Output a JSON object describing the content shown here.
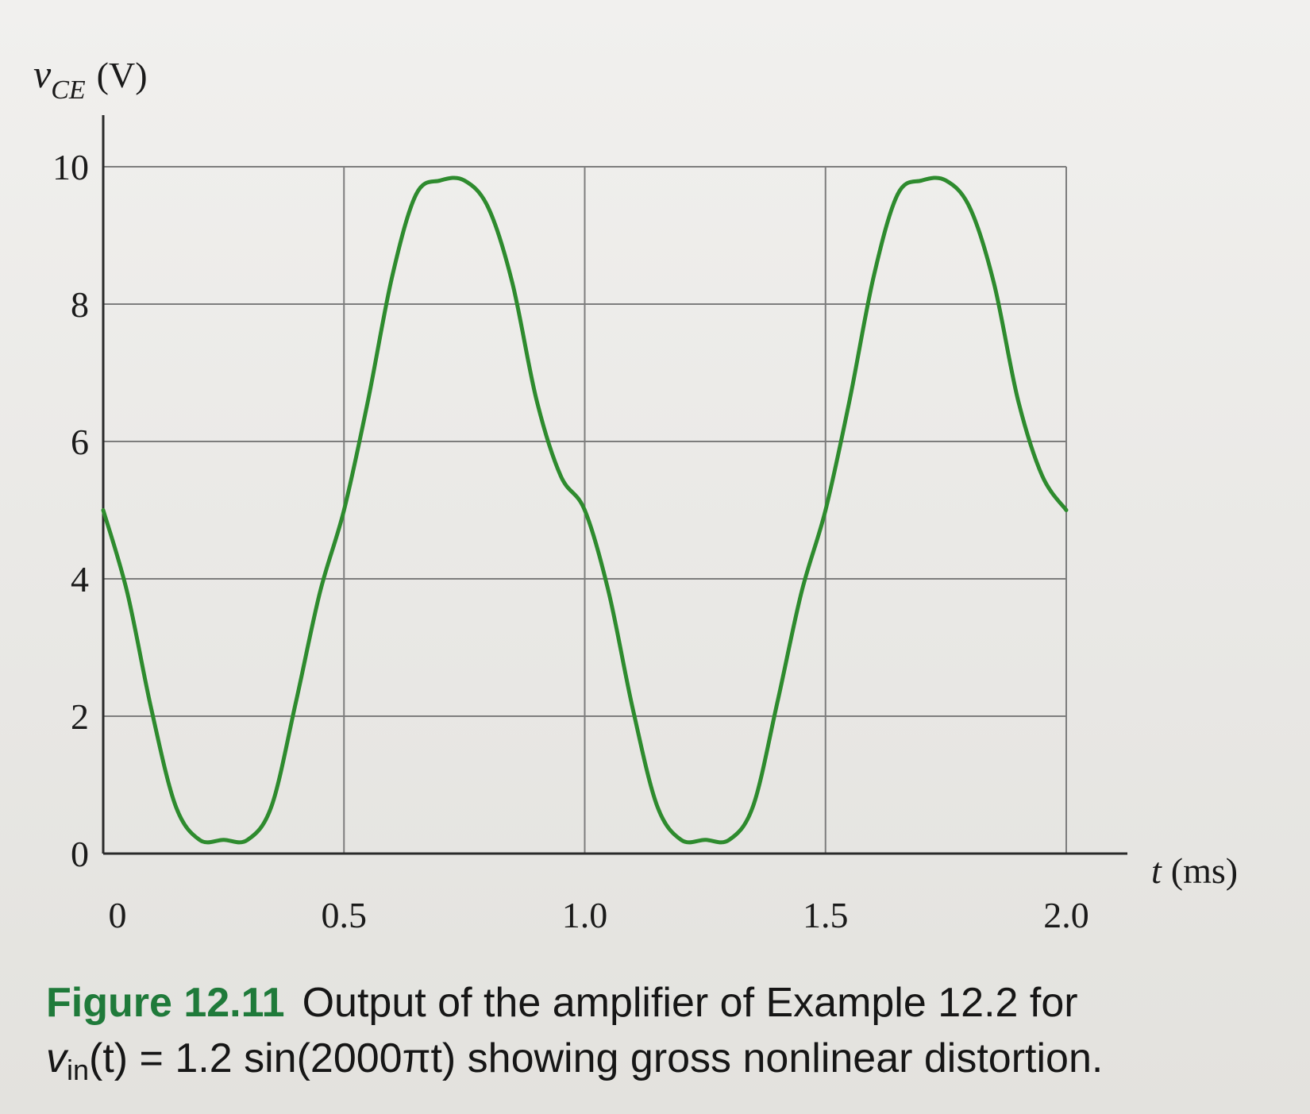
{
  "chart_data": {
    "type": "line",
    "ylabel_var": "v",
    "ylabel_sub": "CE",
    "ylabel_unit": "(V)",
    "xlabel_var": "t",
    "xlabel_unit": "(ms)",
    "xlim": [
      0,
      2.0
    ],
    "ylim": [
      0,
      10
    ],
    "x_ticks": [
      0,
      0.5,
      1.0,
      1.5,
      2.0
    ],
    "x_tick_labels": [
      "0",
      "0.5",
      "1.0",
      "1.5",
      "2.0"
    ],
    "y_ticks": [
      0,
      2,
      4,
      6,
      8,
      10
    ],
    "y_tick_labels": [
      "0",
      "2",
      "4",
      "6",
      "8",
      "10"
    ],
    "grid": true,
    "line_color": "#2e8b2e",
    "series": [
      {
        "x": [
          0,
          0.05,
          0.1,
          0.15,
          0.2,
          0.25,
          0.3,
          0.35,
          0.4,
          0.45,
          0.5,
          0.55,
          0.6,
          0.65,
          0.7,
          0.75,
          0.8,
          0.85,
          0.9,
          0.95,
          1.0,
          1.05,
          1.1,
          1.15,
          1.2,
          1.25,
          1.3,
          1.35,
          1.4,
          1.45,
          1.5,
          1.55,
          1.6,
          1.65,
          1.7,
          1.75,
          1.8,
          1.85,
          1.9,
          1.95,
          2.0
        ],
        "y": [
          5.0,
          3.8,
          2.1,
          0.7,
          0.2,
          0.2,
          0.2,
          0.7,
          2.2,
          3.8,
          5.0,
          6.6,
          8.4,
          9.6,
          9.8,
          9.8,
          9.4,
          8.3,
          6.6,
          5.5,
          5.0,
          3.8,
          2.1,
          0.7,
          0.2,
          0.2,
          0.2,
          0.7,
          2.2,
          3.8,
          5.0,
          6.6,
          8.4,
          9.6,
          9.8,
          9.8,
          9.4,
          8.3,
          6.6,
          5.5,
          5.0
        ]
      }
    ]
  },
  "caption": {
    "figure_number": "Figure 12.11",
    "line1_text": "Output of the amplifier of Example 12.2 for",
    "line2_var": "v",
    "line2_sub": "in",
    "line2_text": "(t) = 1.2 sin(2000πt) showing gross nonlinear distortion."
  }
}
